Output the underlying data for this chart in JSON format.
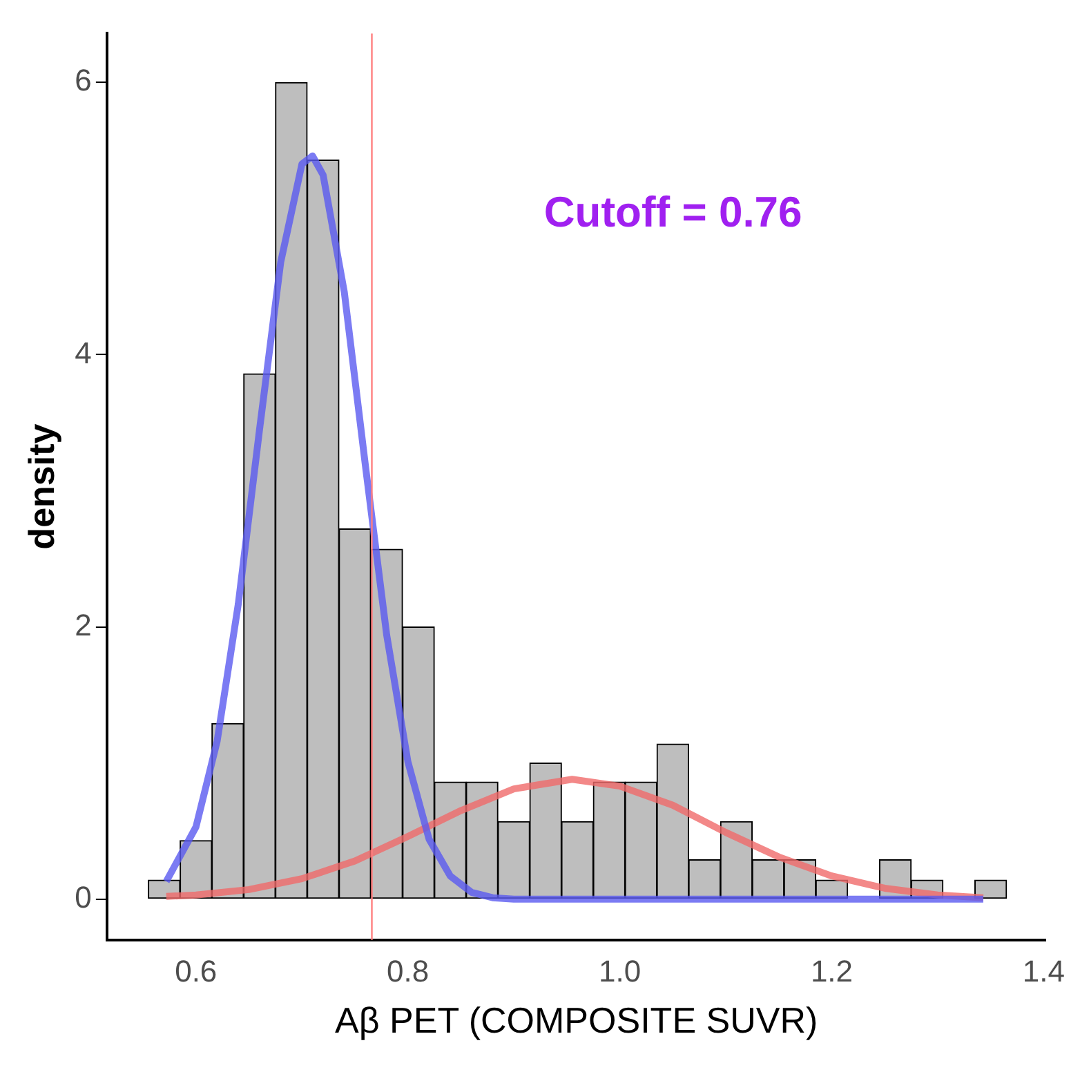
{
  "chart_data": {
    "type": "histogram",
    "xlabel": "Aβ PET (COMPOSITE SUVR)",
    "ylabel": "density",
    "xlim": [
      0.516,
      1.402
    ],
    "xticks": [
      {
        "value": 0.6,
        "label": "0.6"
      },
      {
        "value": 0.8,
        "label": "0.8"
      },
      {
        "value": 1.0,
        "label": "1.0"
      },
      {
        "value": 1.2,
        "label": "1.2"
      },
      {
        "value": 1.4,
        "label": "1.4"
      }
    ],
    "ylim": [
      -0.3,
      6.36
    ],
    "yticks": [
      0,
      2,
      4,
      6
    ],
    "grid": false,
    "legend": false,
    "series": [
      {
        "color": "#bebebe",
        "bins": [
          0.555,
          0.585,
          0.615,
          0.645,
          0.675,
          0.705,
          0.735,
          0.765,
          0.795,
          0.825,
          0.855,
          0.885,
          0.915,
          0.945,
          0.975,
          1.005,
          1.035,
          1.065,
          1.095,
          1.125,
          1.155,
          1.185,
          1.215,
          1.245,
          1.275,
          1.305,
          1.335,
          1.365
        ],
        "values": [
          0.14,
          0.43,
          1.29,
          3.86,
          6.0,
          5.43,
          2.72,
          2.57,
          2.0,
          0.86,
          0.86,
          0.57,
          1.0,
          0.57,
          0.86,
          0.86,
          1.14,
          0.29,
          0.57,
          0.29,
          0.29,
          0.14,
          0,
          0.29,
          0.14,
          0,
          0.14
        ]
      },
      {
        "type": "line",
        "color": "#5a5af0",
        "x": [
          0.572,
          0.6,
          0.62,
          0.64,
          0.66,
          0.68,
          0.7,
          0.71,
          0.72,
          0.74,
          0.76,
          0.78,
          0.8,
          0.82,
          0.84,
          0.86,
          0.88,
          0.9,
          1.0,
          1.1,
          1.2,
          1.343
        ],
        "values": [
          0.13,
          0.53,
          1.16,
          2.17,
          3.45,
          4.68,
          5.4,
          5.46,
          5.32,
          4.46,
          3.18,
          1.94,
          1.01,
          0.44,
          0.17,
          0.05,
          0.01,
          0,
          0,
          0,
          0,
          0
        ]
      },
      {
        "type": "line",
        "color": "#f06a6a",
        "x": [
          0.572,
          0.6,
          0.65,
          0.7,
          0.75,
          0.8,
          0.85,
          0.9,
          0.955,
          1.0,
          1.05,
          1.1,
          1.15,
          1.2,
          1.25,
          1.3,
          1.343
        ],
        "values": [
          0.02,
          0.03,
          0.07,
          0.15,
          0.28,
          0.46,
          0.65,
          0.81,
          0.88,
          0.83,
          0.69,
          0.49,
          0.31,
          0.17,
          0.08,
          0.03,
          0.01
        ]
      }
    ],
    "ref_lines": [
      {
        "axis": "x",
        "value": 0.766,
        "color": "#ff7f7f"
      }
    ],
    "annotations": [
      "Cutoff = 0.76"
    ]
  }
}
